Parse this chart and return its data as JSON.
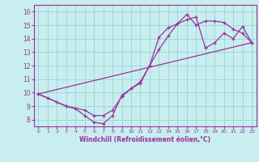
{
  "title": "",
  "xlabel": "Windchill (Refroidissement éolien,°C)",
  "ylabel": "",
  "background_color": "#c8eef0",
  "line_color": "#993399",
  "xlim": [
    -0.5,
    23.5
  ],
  "ylim": [
    7.5,
    16.5
  ],
  "xticks": [
    0,
    1,
    2,
    3,
    4,
    5,
    6,
    7,
    8,
    9,
    10,
    11,
    12,
    13,
    14,
    15,
    16,
    17,
    18,
    19,
    20,
    21,
    22,
    23
  ],
  "yticks": [
    8,
    9,
    10,
    11,
    12,
    13,
    14,
    15,
    16
  ],
  "grid_color": "#a0d8d8",
  "line1_x": [
    0,
    1,
    2,
    3,
    4,
    5,
    6,
    7,
    8,
    9,
    10,
    11,
    12,
    13,
    14,
    15,
    16,
    17,
    18,
    19,
    20,
    21,
    22,
    23
  ],
  "line1_y": [
    9.9,
    9.6,
    9.3,
    9.0,
    8.8,
    8.3,
    7.8,
    7.7,
    8.3,
    9.8,
    10.3,
    10.7,
    12.0,
    14.1,
    14.8,
    15.1,
    15.8,
    15.0,
    15.3,
    15.3,
    15.2,
    14.7,
    14.4,
    13.7
  ],
  "line2_x": [
    0,
    3,
    5,
    6,
    7,
    8,
    9,
    10,
    11,
    12,
    13,
    14,
    15,
    16,
    17,
    18,
    19,
    20,
    21,
    22,
    23
  ],
  "line2_y": [
    9.9,
    9.0,
    8.7,
    8.3,
    8.3,
    8.7,
    9.7,
    10.3,
    10.8,
    12.0,
    13.2,
    14.2,
    15.1,
    15.4,
    15.6,
    13.3,
    13.7,
    14.4,
    14.0,
    14.9,
    13.7
  ],
  "line3_x": [
    0,
    23
  ],
  "line3_y": [
    9.9,
    13.7
  ]
}
